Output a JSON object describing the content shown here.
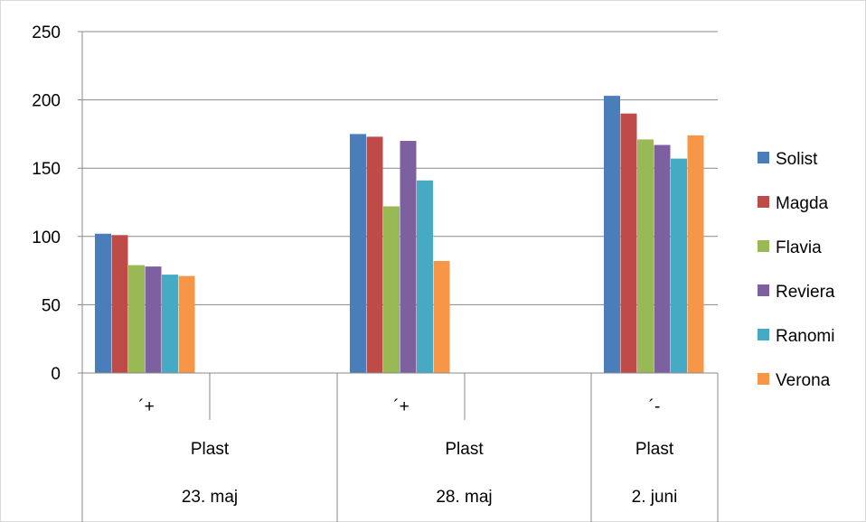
{
  "chart_data": {
    "type": "bar",
    "y_ticks": [
      "0",
      "50",
      "100",
      "150",
      "200",
      "250"
    ],
    "ylim": [
      0,
      250
    ],
    "grid": true,
    "legend_position": "right",
    "groups": [
      {
        "level1": "´+",
        "level2": "Plast",
        "level3": "23. maj"
      },
      {
        "level1": "´+",
        "level2": "Plast",
        "level3": "28. maj"
      },
      {
        "level1": "´-",
        "level2": "Plast",
        "level3": "2. juni"
      }
    ],
    "series": [
      {
        "name": "Solist",
        "color": "#4a7ebb",
        "values": [
          102,
          175,
          203
        ]
      },
      {
        "name": "Magda",
        "color": "#be4b48",
        "values": [
          101,
          173,
          190
        ]
      },
      {
        "name": "Flavia",
        "color": "#98b954",
        "values": [
          79,
          122,
          171
        ]
      },
      {
        "name": "Reviera",
        "color": "#7d60a0",
        "values": [
          78,
          170,
          167
        ]
      },
      {
        "name": "Ranomi",
        "color": "#46aac5",
        "values": [
          72,
          141,
          157
        ]
      },
      {
        "name": "Verona",
        "color": "#f79646",
        "values": [
          71,
          82,
          174
        ]
      }
    ]
  }
}
